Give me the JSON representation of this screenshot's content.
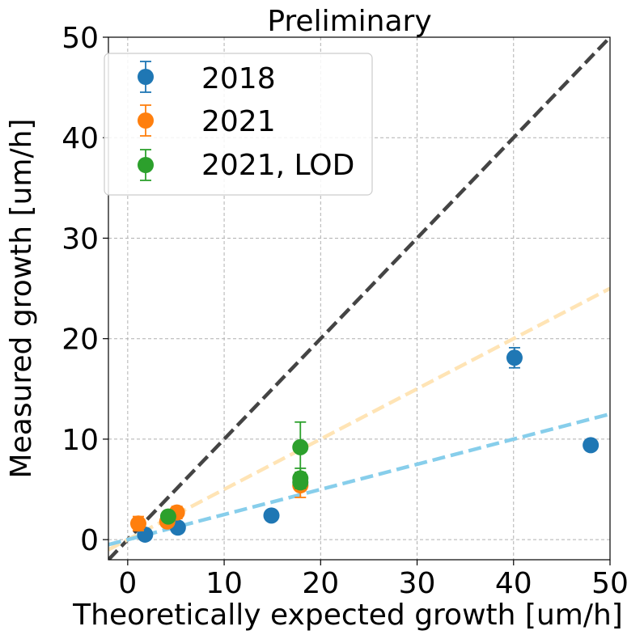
{
  "chart_data": {
    "type": "scatter",
    "title": "Preliminary",
    "xlabel": "Theoretically expected growth [um/h]",
    "ylabel": "Measured growth [um/h]",
    "xlim": [
      -2,
      50
    ],
    "ylim": [
      -2,
      50
    ],
    "xticks": [
      0,
      10,
      20,
      30,
      40,
      50
    ],
    "yticks": [
      0,
      10,
      20,
      30,
      40,
      50
    ],
    "grid": true,
    "legend_position": "top-left",
    "series": [
      {
        "name": "2018",
        "color": "#1f77b4",
        "points": [
          {
            "x": 1.8,
            "y": 0.5,
            "err": 0.3
          },
          {
            "x": 5.2,
            "y": 1.2,
            "err": 0.3
          },
          {
            "x": 14.9,
            "y": 2.4,
            "err": 0.3
          },
          {
            "x": 40.1,
            "y": 18.1,
            "err": 1.0
          },
          {
            "x": 48.0,
            "y": 9.4,
            "err": 0.4
          }
        ]
      },
      {
        "name": "2021",
        "color": "#ff7f0e",
        "points": [
          {
            "x": 1.1,
            "y": 1.6,
            "err": 0.7
          },
          {
            "x": 4.1,
            "y": 1.8,
            "err": 0.4
          },
          {
            "x": 5.1,
            "y": 2.7,
            "err": 0.6
          },
          {
            "x": 17.9,
            "y": 5.4,
            "err": 1.2
          }
        ]
      },
      {
        "name": "2021, LOD",
        "color": "#2ca02c",
        "points": [
          {
            "x": 4.2,
            "y": 2.3,
            "err": 0.2
          },
          {
            "x": 17.9,
            "y": 9.2,
            "err": 2.5
          },
          {
            "x": 17.9,
            "y": 6.1,
            "err": 1.0
          },
          {
            "x": 17.9,
            "y": 5.7,
            "err": 0.6
          }
        ]
      }
    ],
    "reference_lines": [
      {
        "slope": 1.0,
        "color": "#444444"
      },
      {
        "slope": 0.5,
        "color": "#ffe4b5"
      },
      {
        "slope": 0.25,
        "color": "#87ceeb"
      }
    ]
  }
}
